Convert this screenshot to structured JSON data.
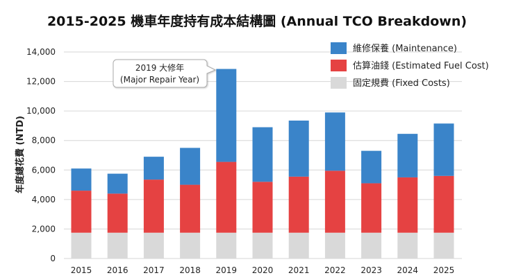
{
  "chart_data": {
    "type": "bar",
    "stacked": true,
    "title": "2015-2025 機車年度持有成本結構圖 (Annual TCO Breakdown)",
    "xlabel": "",
    "ylabel": "年度總花費 (NTD)",
    "ylim": [
      0,
      14000
    ],
    "yticks": [
      0,
      2000,
      4000,
      6000,
      8000,
      10000,
      12000,
      14000
    ],
    "ytick_labels": [
      "0",
      "2,000",
      "4,000",
      "6,000",
      "8,000",
      "10,000",
      "12,000",
      "14,000"
    ],
    "grid": true,
    "legend_position": "top-right",
    "categories": [
      "2015",
      "2016",
      "2017",
      "2018",
      "2019",
      "2020",
      "2021",
      "2022",
      "2023",
      "2024",
      "2025"
    ],
    "series": [
      {
        "name": "固定規費 (Fixed Costs)",
        "color": "#d9d9d9",
        "values": [
          1750,
          1750,
          1750,
          1750,
          1750,
          1750,
          1750,
          1750,
          1750,
          1750,
          1750
        ]
      },
      {
        "name": "估算油錢 (Estimated Fuel Cost)",
        "color": "#e54242",
        "values": [
          2850,
          2650,
          3600,
          3250,
          4800,
          3450,
          3800,
          4200,
          3350,
          3750,
          3850
        ]
      },
      {
        "name": "維修保養 (Maintenance)",
        "color": "#3a84c9",
        "values": [
          1500,
          1350,
          1550,
          2500,
          6300,
          3700,
          3800,
          3950,
          2200,
          2950,
          3550
        ]
      }
    ],
    "annotation": {
      "category": "2019",
      "line1": "2019 大修年",
      "line2": "(Major Repair Year)"
    }
  }
}
